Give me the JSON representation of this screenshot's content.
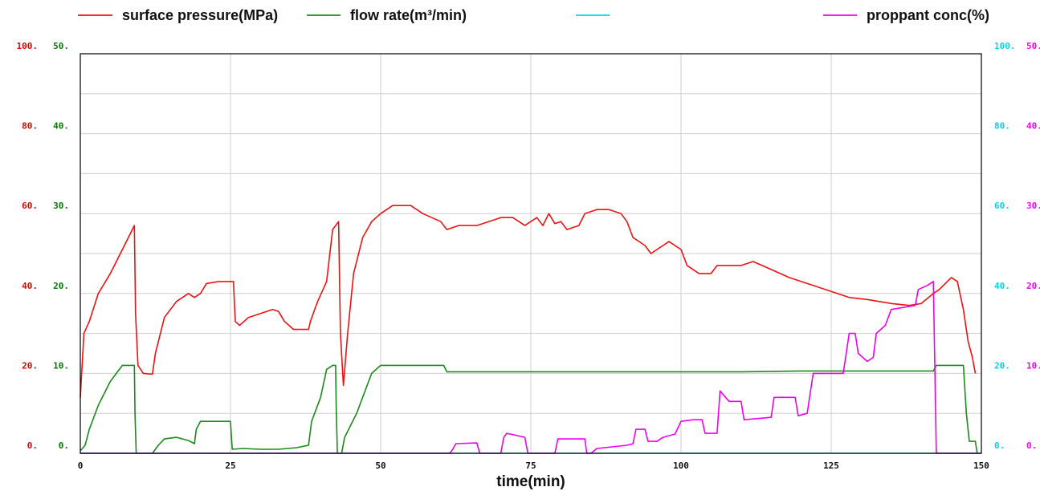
{
  "chart_data": {
    "type": "line",
    "xlabel": "time(min)",
    "xlim": [
      0,
      150
    ],
    "x_ticks": [
      "0",
      "25",
      "50",
      "75",
      "100",
      "125",
      "150"
    ],
    "grid": true,
    "legend_placement": "top",
    "axes": [
      {
        "id": "pressure",
        "side": "left-outer",
        "color": "#e00000",
        "ylim": [
          0,
          100
        ],
        "tick_labels": [
          "0.",
          "20.",
          "40.",
          "60.",
          "80.",
          "100."
        ]
      },
      {
        "id": "rate",
        "side": "left-inner",
        "color": "#007a00",
        "ylim": [
          0,
          50
        ],
        "tick_labels": [
          "0.",
          "10.",
          "20.",
          "30.",
          "40.",
          "50."
        ]
      },
      {
        "id": "density",
        "side": "right-inner",
        "color": "#00d8e8",
        "ylim": [
          0,
          100
        ],
        "tick_labels": [
          "0.",
          "20.",
          "40.",
          "60.",
          "80.",
          "100."
        ]
      },
      {
        "id": "conc",
        "side": "right-outer",
        "color": "#ff00ff",
        "ylim": [
          0,
          50
        ],
        "tick_labels": [
          "0.",
          "10.",
          "20.",
          "30.",
          "40.",
          "50."
        ]
      }
    ],
    "series": [
      {
        "name": "surface pressure(MPa)",
        "color": "#ee1111",
        "axis": "pressure",
        "points": [
          [
            0,
            14
          ],
          [
            0.6,
            30
          ],
          [
            1.5,
            33
          ],
          [
            3,
            40
          ],
          [
            5,
            45
          ],
          [
            7,
            51
          ],
          [
            9,
            57
          ],
          [
            9.2,
            35
          ],
          [
            9.6,
            22
          ],
          [
            10.5,
            20
          ],
          [
            12,
            19.8
          ],
          [
            12.5,
            25
          ],
          [
            14,
            34
          ],
          [
            16,
            38
          ],
          [
            18,
            40
          ],
          [
            19,
            39
          ],
          [
            20,
            40
          ],
          [
            21,
            42.5
          ],
          [
            23,
            43
          ],
          [
            25.5,
            43
          ],
          [
            25.8,
            33
          ],
          [
            26.5,
            32
          ],
          [
            28,
            34
          ],
          [
            30,
            35
          ],
          [
            32,
            36
          ],
          [
            33,
            35.5
          ],
          [
            34,
            33
          ],
          [
            35.5,
            31
          ],
          [
            38,
            31
          ],
          [
            38.3,
            33
          ],
          [
            39.5,
            38
          ],
          [
            41,
            43
          ],
          [
            42,
            56
          ],
          [
            43,
            58
          ],
          [
            43.3,
            30
          ],
          [
            43.8,
            17
          ],
          [
            44.5,
            30
          ],
          [
            45.5,
            45
          ],
          [
            47,
            54
          ],
          [
            48.5,
            58
          ],
          [
            50,
            60
          ],
          [
            52,
            62
          ],
          [
            55,
            62
          ],
          [
            57,
            60
          ],
          [
            60,
            58
          ],
          [
            61,
            56
          ],
          [
            63,
            57
          ],
          [
            66,
            57
          ],
          [
            68,
            58
          ],
          [
            70,
            59
          ],
          [
            72,
            59
          ],
          [
            74,
            57
          ],
          [
            76,
            59
          ],
          [
            77,
            57
          ],
          [
            78,
            60
          ],
          [
            79,
            57.5
          ],
          [
            80,
            58
          ],
          [
            81,
            56
          ],
          [
            83,
            57
          ],
          [
            84,
            60
          ],
          [
            86,
            61
          ],
          [
            88,
            61
          ],
          [
            90,
            60
          ],
          [
            91,
            58
          ],
          [
            92,
            54
          ],
          [
            94,
            52
          ],
          [
            95,
            50
          ],
          [
            96,
            51
          ],
          [
            98,
            53
          ],
          [
            100,
            51
          ],
          [
            101,
            47
          ],
          [
            103,
            45
          ],
          [
            105,
            45
          ],
          [
            106,
            47
          ],
          [
            110,
            47
          ],
          [
            112,
            48
          ],
          [
            115,
            46
          ],
          [
            118,
            44
          ],
          [
            120,
            43
          ],
          [
            122,
            42
          ],
          [
            125,
            40.5
          ],
          [
            128,
            39
          ],
          [
            131,
            38.5
          ],
          [
            133,
            38
          ],
          [
            135,
            37.5
          ],
          [
            138,
            37
          ],
          [
            140,
            37.5
          ],
          [
            142,
            40
          ],
          [
            143,
            41
          ],
          [
            145,
            44
          ],
          [
            146,
            43
          ],
          [
            147,
            36
          ],
          [
            147.8,
            28
          ],
          [
            148.5,
            24
          ],
          [
            149,
            20
          ]
        ]
      },
      {
        "name": "flow rate(m³/min)",
        "color": "#1a8a1a",
        "axis": "rate",
        "points": [
          [
            0,
            0.3
          ],
          [
            0.8,
            1
          ],
          [
            1.5,
            3
          ],
          [
            3,
            6
          ],
          [
            5,
            9
          ],
          [
            7,
            11
          ],
          [
            9,
            11
          ],
          [
            9.1,
            5
          ],
          [
            9.3,
            0
          ],
          [
            12,
            0
          ],
          [
            13,
            1
          ],
          [
            14,
            1.8
          ],
          [
            16,
            2
          ],
          [
            18,
            1.6
          ],
          [
            19,
            1.2
          ],
          [
            19.3,
            3
          ],
          [
            20,
            4
          ],
          [
            22,
            4
          ],
          [
            25,
            4
          ],
          [
            25.3,
            0.5
          ],
          [
            27,
            0.6
          ],
          [
            30,
            0.5
          ],
          [
            33,
            0.5
          ],
          [
            36,
            0.7
          ],
          [
            38,
            1
          ],
          [
            38.5,
            4
          ],
          [
            40,
            7
          ],
          [
            41,
            10.5
          ],
          [
            42,
            11
          ],
          [
            42.5,
            11
          ],
          [
            42.6,
            6
          ],
          [
            42.8,
            0
          ],
          [
            43.5,
            0
          ],
          [
            44,
            2
          ],
          [
            46,
            5
          ],
          [
            47.5,
            8
          ],
          [
            48.5,
            10
          ],
          [
            50,
            11
          ],
          [
            55,
            11
          ],
          [
            60.5,
            11
          ],
          [
            61,
            10.2
          ],
          [
            70,
            10.2
          ],
          [
            80,
            10.2
          ],
          [
            90,
            10.2
          ],
          [
            100,
            10.2
          ],
          [
            110,
            10.2
          ],
          [
            120,
            10.3
          ],
          [
            130,
            10.3
          ],
          [
            142,
            10.3
          ],
          [
            142.5,
            11
          ],
          [
            147,
            11
          ],
          [
            147.5,
            5
          ],
          [
            148,
            1.5
          ],
          [
            149,
            1.5
          ],
          [
            149.3,
            0
          ]
        ]
      },
      {
        "name": "",
        "color": "#00d8e8",
        "axis": "density",
        "points": [
          [
            0,
            0
          ],
          [
            150,
            0
          ]
        ]
      },
      {
        "name": "proppant conc(%)",
        "color": "#ee00ee",
        "axis": "conc",
        "points": [
          [
            0,
            0
          ],
          [
            61.5,
            0
          ],
          [
            62,
            0.5
          ],
          [
            62.5,
            1.2
          ],
          [
            66,
            1.3
          ],
          [
            66.5,
            0
          ],
          [
            70,
            0
          ],
          [
            70.5,
            2
          ],
          [
            71,
            2.5
          ],
          [
            74,
            2
          ],
          [
            74.5,
            0
          ],
          [
            79,
            0
          ],
          [
            79.5,
            1.8
          ],
          [
            84,
            1.8
          ],
          [
            84.3,
            0
          ],
          [
            85,
            0
          ],
          [
            86,
            0.6
          ],
          [
            91,
            1
          ],
          [
            92,
            1.2
          ],
          [
            92.5,
            3
          ],
          [
            94,
            3
          ],
          [
            94.5,
            1.5
          ],
          [
            96,
            1.5
          ],
          [
            97,
            2
          ],
          [
            99,
            2.4
          ],
          [
            100,
            4
          ],
          [
            102,
            4.2
          ],
          [
            103.5,
            4.2
          ],
          [
            104,
            2.5
          ],
          [
            106,
            2.5
          ],
          [
            106.5,
            7.8
          ],
          [
            108,
            6.5
          ],
          [
            110,
            6.5
          ],
          [
            110.5,
            4.2
          ],
          [
            115,
            4.5
          ],
          [
            115.5,
            7
          ],
          [
            119,
            7
          ],
          [
            119.5,
            4.7
          ],
          [
            121,
            5
          ],
          [
            122,
            10
          ],
          [
            127,
            10
          ],
          [
            128,
            15
          ],
          [
            129,
            15
          ],
          [
            129.5,
            12.5
          ],
          [
            131,
            11.5
          ],
          [
            132,
            12
          ],
          [
            132.5,
            15
          ],
          [
            134,
            16
          ],
          [
            135,
            18
          ],
          [
            139,
            18.5
          ],
          [
            139.5,
            20.5
          ],
          [
            141,
            21
          ],
          [
            142,
            21.5
          ],
          [
            142.5,
            0
          ],
          [
            150,
            0
          ]
        ]
      }
    ]
  }
}
